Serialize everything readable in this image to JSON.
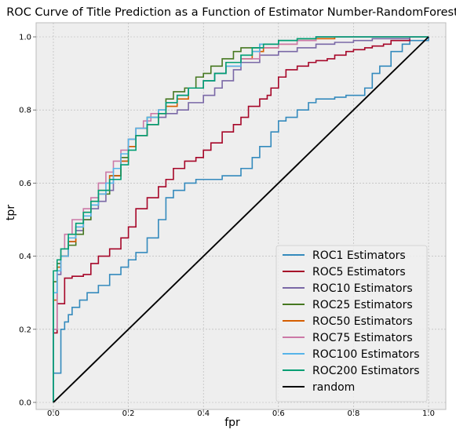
{
  "chart_data": {
    "type": "line",
    "title": "ROC Curve of Title Prediction as a Function of Estimator Number-RandomForest",
    "xlabel": "fpr",
    "ylabel": "tpr",
    "xlim": [
      0,
      1
    ],
    "ylim": [
      0,
      1
    ],
    "xticks": [
      "0.0",
      "0.2",
      "0.4",
      "0.6",
      "0.8",
      "1.0"
    ],
    "yticks": [
      "0.0",
      "0.2",
      "0.4",
      "0.6",
      "0.8",
      "1.0"
    ],
    "grid": true,
    "legend_position": "lower-right",
    "series": [
      {
        "name": "ROC1 Estimators",
        "color": "#348abd",
        "x": [
          0,
          0,
          0.02,
          0.02,
          0.03,
          0.04,
          0.05,
          0.07,
          0.09,
          0.12,
          0.15,
          0.18,
          0.2,
          0.22,
          0.25,
          0.28,
          0.3,
          0.32,
          0.35,
          0.38,
          0.4,
          0.45,
          0.5,
          0.53,
          0.55,
          0.58,
          0.6,
          0.62,
          0.65,
          0.68,
          0.7,
          0.75,
          0.78,
          0.8,
          0.83,
          0.85,
          0.87,
          0.9,
          0.93,
          0.95,
          0.98,
          1.0
        ],
        "y": [
          0,
          0.08,
          0.08,
          0.2,
          0.22,
          0.24,
          0.26,
          0.28,
          0.3,
          0.32,
          0.35,
          0.37,
          0.39,
          0.41,
          0.45,
          0.5,
          0.56,
          0.58,
          0.6,
          0.61,
          0.61,
          0.62,
          0.64,
          0.67,
          0.7,
          0.74,
          0.77,
          0.78,
          0.8,
          0.82,
          0.83,
          0.835,
          0.84,
          0.84,
          0.86,
          0.9,
          0.92,
          0.96,
          0.98,
          0.99,
          0.99,
          1.0
        ]
      },
      {
        "name": "ROC5 Estimators",
        "color": "#a60628",
        "x": [
          0,
          0,
          0.01,
          0.03,
          0.05,
          0.08,
          0.1,
          0.12,
          0.15,
          0.18,
          0.2,
          0.22,
          0.25,
          0.28,
          0.3,
          0.32,
          0.35,
          0.38,
          0.4,
          0.42,
          0.45,
          0.48,
          0.5,
          0.52,
          0.55,
          0.57,
          0.58,
          0.6,
          0.62,
          0.65,
          0.68,
          0.7,
          0.73,
          0.75,
          0.78,
          0.8,
          0.83,
          0.85,
          0.88,
          0.9,
          0.95,
          1.0
        ],
        "y": [
          0,
          0.19,
          0.27,
          0.34,
          0.345,
          0.35,
          0.38,
          0.4,
          0.42,
          0.45,
          0.48,
          0.53,
          0.56,
          0.59,
          0.61,
          0.64,
          0.66,
          0.67,
          0.69,
          0.71,
          0.74,
          0.76,
          0.78,
          0.81,
          0.83,
          0.84,
          0.86,
          0.89,
          0.91,
          0.92,
          0.93,
          0.935,
          0.94,
          0.95,
          0.96,
          0.965,
          0.97,
          0.975,
          0.98,
          0.99,
          1.0,
          1.0
        ]
      },
      {
        "name": "ROC10 Estimators",
        "color": "#7a68a6",
        "x": [
          0,
          0,
          0.01,
          0.02,
          0.04,
          0.06,
          0.08,
          0.1,
          0.12,
          0.14,
          0.16,
          0.18,
          0.2,
          0.22,
          0.25,
          0.28,
          0.3,
          0.33,
          0.36,
          0.4,
          0.43,
          0.45,
          0.48,
          0.5,
          0.55,
          0.6,
          0.65,
          0.7,
          0.75,
          0.8,
          0.85,
          0.9,
          0.95,
          1.0
        ],
        "y": [
          0,
          0.2,
          0.35,
          0.4,
          0.44,
          0.47,
          0.5,
          0.53,
          0.55,
          0.58,
          0.62,
          0.66,
          0.7,
          0.73,
          0.76,
          0.78,
          0.79,
          0.8,
          0.82,
          0.84,
          0.86,
          0.88,
          0.91,
          0.93,
          0.95,
          0.96,
          0.97,
          0.98,
          0.985,
          0.99,
          0.995,
          0.995,
          1.0,
          1.0
        ]
      },
      {
        "name": "ROC25 Estimators",
        "color": "#467821",
        "x": [
          0,
          0,
          0.01,
          0.02,
          0.04,
          0.06,
          0.08,
          0.1,
          0.12,
          0.15,
          0.18,
          0.2,
          0.22,
          0.25,
          0.28,
          0.3,
          0.32,
          0.35,
          0.38,
          0.4,
          0.42,
          0.45,
          0.48,
          0.5,
          0.55,
          0.6,
          0.65,
          0.7,
          0.75,
          0.8,
          0.85,
          0.9,
          1.0
        ],
        "y": [
          0,
          0.33,
          0.38,
          0.4,
          0.43,
          0.46,
          0.5,
          0.54,
          0.57,
          0.62,
          0.67,
          0.72,
          0.75,
          0.78,
          0.8,
          0.83,
          0.85,
          0.86,
          0.89,
          0.9,
          0.92,
          0.94,
          0.96,
          0.97,
          0.98,
          0.99,
          0.995,
          1.0,
          1.0,
          1.0,
          1.0,
          1.0,
          1.0
        ]
      },
      {
        "name": "ROC50 Estimators",
        "color": "#d55e00",
        "x": [
          0,
          0,
          0.01,
          0.02,
          0.04,
          0.06,
          0.08,
          0.1,
          0.12,
          0.15,
          0.18,
          0.2,
          0.22,
          0.25,
          0.28,
          0.3,
          0.33,
          0.36,
          0.4,
          0.43,
          0.46,
          0.5,
          0.53,
          0.56,
          0.6,
          0.65,
          0.7,
          0.75,
          0.8,
          0.85,
          0.9,
          1.0
        ],
        "y": [
          0,
          0.28,
          0.37,
          0.4,
          0.44,
          0.48,
          0.52,
          0.55,
          0.58,
          0.62,
          0.66,
          0.7,
          0.73,
          0.76,
          0.79,
          0.81,
          0.83,
          0.86,
          0.88,
          0.9,
          0.92,
          0.94,
          0.96,
          0.97,
          0.98,
          0.99,
          0.995,
          1.0,
          1.0,
          1.0,
          1.0,
          1.0
        ]
      },
      {
        "name": "ROC75 Estimators",
        "color": "#cc79a7",
        "x": [
          0,
          0,
          0.01,
          0.02,
          0.03,
          0.05,
          0.08,
          0.1,
          0.12,
          0.14,
          0.16,
          0.18,
          0.2,
          0.22,
          0.24,
          0.26,
          0.28,
          0.3,
          0.33,
          0.36,
          0.4,
          0.43,
          0.46,
          0.5,
          0.55,
          0.6,
          0.65,
          0.7,
          0.8,
          0.9,
          1.0
        ],
        "y": [
          0,
          0.2,
          0.36,
          0.42,
          0.46,
          0.5,
          0.53,
          0.56,
          0.6,
          0.63,
          0.66,
          0.69,
          0.72,
          0.75,
          0.77,
          0.79,
          0.8,
          0.82,
          0.84,
          0.86,
          0.88,
          0.9,
          0.92,
          0.94,
          0.97,
          0.98,
          0.99,
          1.0,
          1.0,
          1.0,
          1.0
        ]
      },
      {
        "name": "ROC100 Estimators",
        "color": "#56b4e9",
        "x": [
          0,
          0,
          0.01,
          0.02,
          0.04,
          0.06,
          0.08,
          0.1,
          0.12,
          0.14,
          0.16,
          0.18,
          0.2,
          0.22,
          0.25,
          0.28,
          0.3,
          0.33,
          0.36,
          0.4,
          0.43,
          0.46,
          0.5,
          0.53,
          0.55,
          0.6,
          0.65,
          0.7,
          0.8,
          0.9,
          1.0
        ],
        "y": [
          0,
          0.3,
          0.36,
          0.4,
          0.45,
          0.48,
          0.51,
          0.54,
          0.57,
          0.6,
          0.64,
          0.68,
          0.72,
          0.75,
          0.78,
          0.8,
          0.82,
          0.84,
          0.86,
          0.88,
          0.9,
          0.92,
          0.95,
          0.96,
          0.98,
          0.99,
          0.995,
          1.0,
          1.0,
          1.0,
          1.0
        ]
      },
      {
        "name": "ROC200 Estimators",
        "color": "#009e73",
        "x": [
          0,
          0,
          0.01,
          0.02,
          0.04,
          0.06,
          0.08,
          0.1,
          0.12,
          0.15,
          0.18,
          0.2,
          0.22,
          0.25,
          0.28,
          0.3,
          0.33,
          0.36,
          0.4,
          0.43,
          0.46,
          0.5,
          0.53,
          0.56,
          0.6,
          0.65,
          0.7,
          0.75,
          0.8,
          0.9,
          1.0
        ],
        "y": [
          0,
          0.36,
          0.39,
          0.42,
          0.46,
          0.49,
          0.52,
          0.55,
          0.58,
          0.61,
          0.65,
          0.69,
          0.73,
          0.76,
          0.79,
          0.82,
          0.84,
          0.86,
          0.88,
          0.9,
          0.93,
          0.95,
          0.97,
          0.98,
          0.99,
          0.995,
          1.0,
          1.0,
          1.0,
          1.0,
          1.0
        ]
      },
      {
        "name": "random",
        "color": "#000000",
        "x": [
          0,
          1
        ],
        "y": [
          0,
          1
        ]
      }
    ]
  }
}
